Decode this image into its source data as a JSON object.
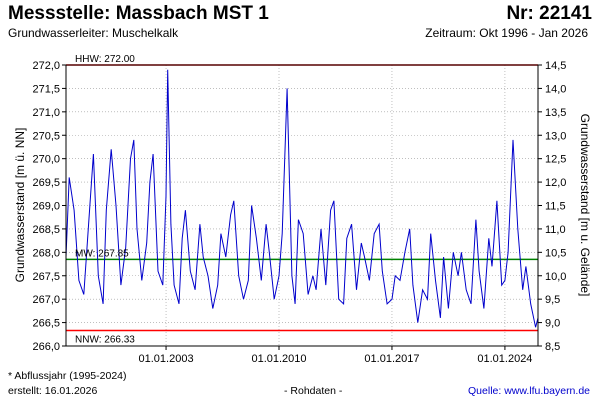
{
  "header": {
    "title": "Messstelle: Massbach MST 1",
    "number": "Nr: 22141",
    "aquifer": "Grundwasserleiter: Muschelkalk",
    "period": "Zeitraum: Okt 1996 - Jan 2026"
  },
  "footer": {
    "note": "* Abflussjahr (1995-2024)",
    "created": "erstellt:  16.01.2026",
    "rawdata": "- Rohdaten -",
    "source": "Quelle:  www.lfu.bayern.de"
  },
  "colors": {
    "series": "#0000cc",
    "hhw": "#ff0000",
    "nnw": "#ff0000",
    "mw": "#008000",
    "grid": "#999999"
  },
  "chart_data": {
    "type": "line",
    "ylabel": "Grundwasserstand [m ü. NN]",
    "y2label": "Grundwasserstand [m u. Gelände]",
    "ylim": [
      266.0,
      272.0
    ],
    "y2lim": [
      14.5,
      8.5
    ],
    "xlim": [
      1996.8,
      2026.05
    ],
    "x_ticks": [
      "01.01.2003",
      "01.01.2010",
      "01.01.2017",
      "01.01.2024"
    ],
    "x_tick_values": [
      2003.0,
      2010.0,
      2017.0,
      2024.0
    ],
    "y_ticks": [
      "266,0",
      "266,5",
      "267,0",
      "267,5",
      "268,0",
      "268,5",
      "269,0",
      "269,5",
      "270,0",
      "270,5",
      "271,0",
      "271,5",
      "272,0"
    ],
    "y_tick_values": [
      266.0,
      266.5,
      267.0,
      267.5,
      268.0,
      268.5,
      269.0,
      269.5,
      270.0,
      270.5,
      271.0,
      271.5,
      272.0
    ],
    "y2_ticks": [
      "14,5",
      "14,0",
      "13,5",
      "13,0",
      "12,5",
      "12,0",
      "11,5",
      "11,0",
      "10,5",
      "10,0",
      "9,5",
      "9,0",
      "8,5"
    ],
    "reference_lines": [
      {
        "label": "HHW: 272.00",
        "value": 272.0,
        "key": "hhw"
      },
      {
        "label": "MW: 267.85",
        "value": 267.85,
        "key": "mw"
      },
      {
        "label": "NNW: 266.33",
        "value": 266.33,
        "key": "nnw"
      }
    ],
    "series": [
      {
        "x": [
          1996.8,
          1997.0,
          1997.3,
          1997.6,
          1997.9,
          1998.2,
          1998.5,
          1998.8,
          1999.1,
          1999.3,
          1999.6,
          1999.9,
          2000.2,
          2000.5,
          2000.8,
          2001.0,
          2001.2,
          2001.5,
          2001.8,
          2002.0,
          2002.2,
          2002.5,
          2002.8,
          2003.0,
          2003.1,
          2003.3,
          2003.5,
          2003.8,
          2004.0,
          2004.2,
          2004.5,
          2004.8,
          2005.1,
          2005.3,
          2005.6,
          2005.9,
          2006.2,
          2006.4,
          2006.7,
          2007.0,
          2007.2,
          2007.5,
          2007.8,
          2008.1,
          2008.3,
          2008.6,
          2008.9,
          2009.2,
          2009.4,
          2009.7,
          2010.0,
          2010.2,
          2010.5,
          2010.8,
          2011.0,
          2011.2,
          2011.5,
          2011.8,
          2012.1,
          2012.3,
          2012.6,
          2012.9,
          2013.2,
          2013.4,
          2013.7,
          2014.0,
          2014.2,
          2014.5,
          2014.8,
          2015.1,
          2015.3,
          2015.6,
          2015.9,
          2016.2,
          2016.4,
          2016.7,
          2017.0,
          2017.2,
          2017.5,
          2017.8,
          2018.1,
          2018.3,
          2018.6,
          2018.9,
          2019.2,
          2019.4,
          2019.7,
          2020.0,
          2020.2,
          2020.5,
          2020.8,
          2021.1,
          2021.3,
          2021.6,
          2021.9,
          2022.2,
          2022.4,
          2022.7,
          2023.0,
          2023.2,
          2023.5,
          2023.8,
          2024.0,
          2024.2,
          2024.5,
          2024.8,
          2025.1,
          2025.3,
          2025.6,
          2025.9,
          2026.05
        ],
        "values": [
          267.9,
          269.6,
          268.9,
          267.4,
          267.1,
          268.6,
          270.1,
          267.5,
          266.9,
          268.9,
          270.2,
          269.0,
          267.3,
          268.1,
          270.0,
          270.4,
          268.5,
          267.4,
          268.2,
          269.5,
          270.1,
          267.6,
          267.3,
          269.2,
          271.9,
          268.6,
          267.3,
          266.9,
          268.3,
          268.9,
          267.6,
          267.2,
          268.6,
          267.9,
          267.5,
          266.8,
          267.3,
          268.4,
          267.9,
          268.8,
          269.1,
          267.5,
          267.0,
          267.4,
          269.0,
          268.3,
          267.4,
          268.6,
          268.0,
          267.0,
          267.5,
          268.4,
          271.5,
          267.5,
          266.9,
          268.7,
          268.4,
          267.1,
          267.5,
          267.2,
          268.5,
          267.3,
          268.9,
          269.1,
          267.0,
          266.9,
          268.3,
          268.6,
          267.2,
          268.2,
          267.9,
          267.4,
          268.4,
          268.6,
          267.6,
          266.9,
          267.0,
          267.5,
          267.4,
          268.0,
          268.5,
          267.3,
          266.5,
          267.2,
          267.0,
          268.4,
          267.4,
          266.6,
          267.9,
          266.8,
          268.0,
          267.5,
          268.0,
          267.2,
          266.9,
          268.7,
          267.6,
          266.8,
          268.3,
          267.7,
          269.1,
          267.3,
          267.4,
          268.0,
          270.4,
          268.5,
          267.2,
          267.7,
          266.9,
          266.4,
          266.6
        ]
      }
    ]
  }
}
